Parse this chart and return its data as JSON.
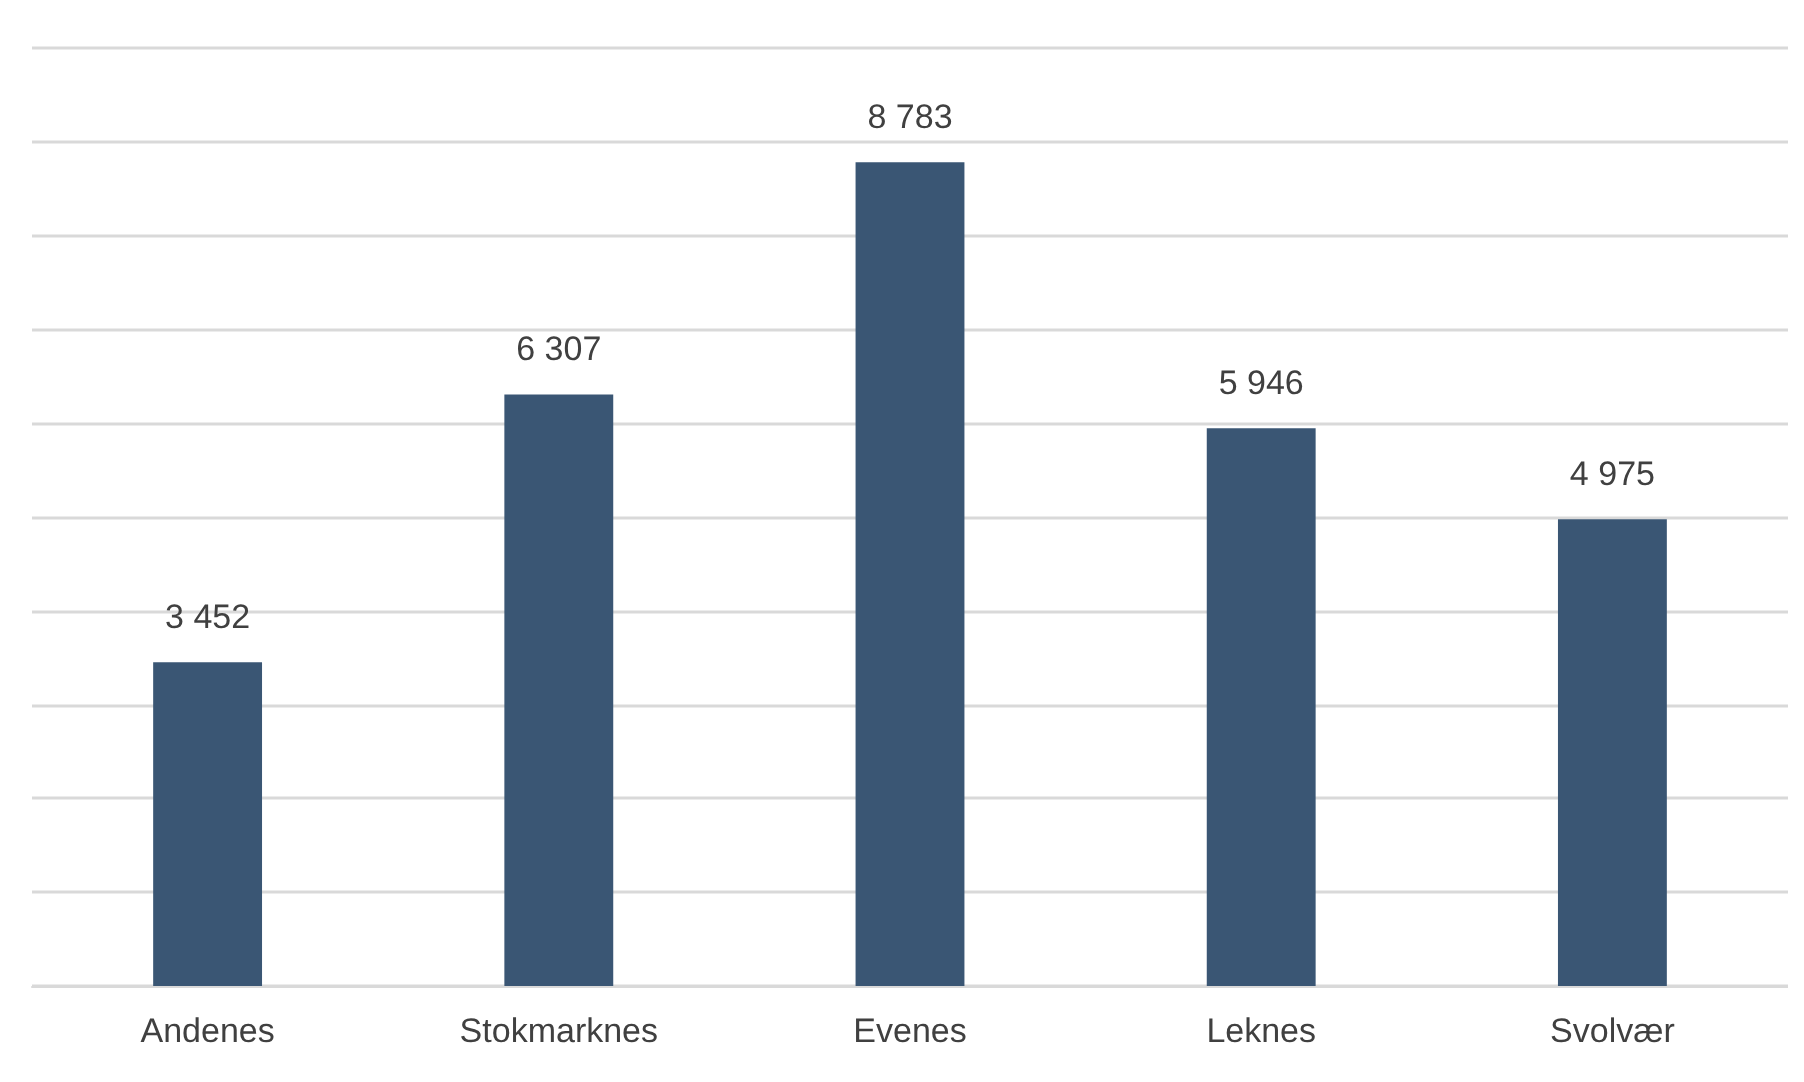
{
  "chart_data": {
    "type": "bar",
    "categories": [
      "Andenes",
      "Stokmarknes",
      "Evenes",
      "Leknes",
      "Svolvær"
    ],
    "values": [
      3452,
      6307,
      8783,
      5946,
      4975
    ],
    "color": "#3a5674",
    "value_labels": [
      "3 452",
      "6 307",
      "8 783",
      "5 946",
      "4 975"
    ],
    "ylim": [
      0,
      10000
    ],
    "yticks": [
      {
        "value": 0,
        "label": null
      },
      {
        "value": 1000,
        "label": null
      },
      {
        "value": 2000,
        "label": null
      },
      {
        "value": 3000,
        "label": null
      },
      {
        "value": 4000,
        "label": null
      },
      {
        "value": 5000,
        "label": null
      },
      {
        "value": 6000,
        "label": null
      },
      {
        "value": 7000,
        "label": null
      },
      {
        "value": 8000,
        "label": null
      },
      {
        "value": 9000,
        "label": null
      },
      {
        "value": 10000,
        "label": null
      }
    ],
    "grid": "y",
    "tick_labels": "x"
  }
}
